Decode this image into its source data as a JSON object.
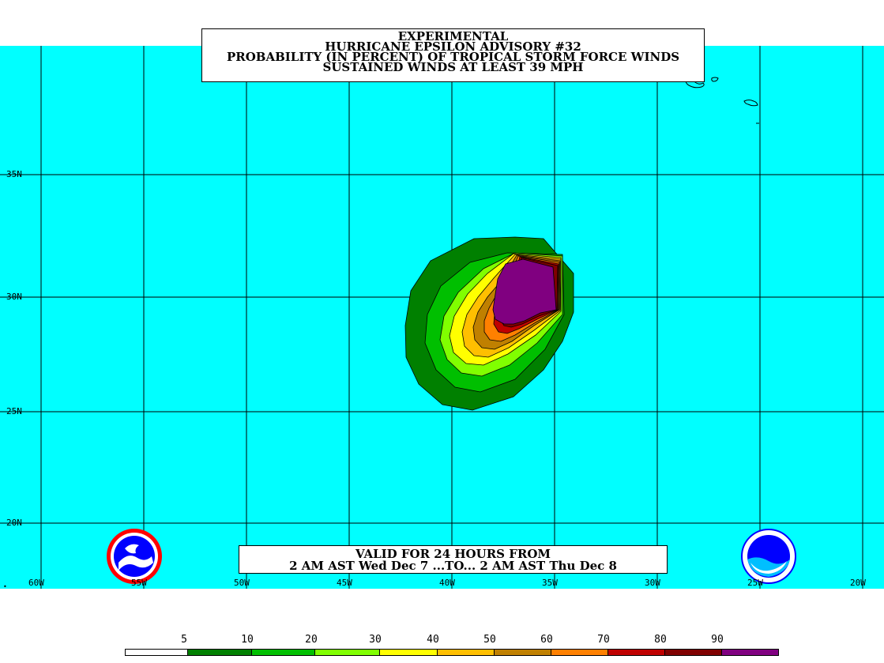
{
  "title": {
    "line1": "EXPERIMENTAL",
    "line2": "HURRICANE EPSILON ADVISORY #32",
    "line3": "PROBABILITY (IN PERCENT) OF TROPICAL STORM FORCE WINDS",
    "line4": "SUSTAINED WINDS AT LEAST 39 MPH"
  },
  "valid": {
    "line1": "VALID FOR 24 HOURS FROM",
    "line2": "2 AM AST Wed Dec 7 ...TO... 2 AM AST Thu Dec 8"
  },
  "lat_labels": [
    "35N",
    "30N",
    "25N",
    "20N"
  ],
  "lon_labels": [
    "60W",
    "55W",
    "50W",
    "45W",
    "40W",
    "35W",
    "30W",
    "25W",
    "20W"
  ],
  "legend": {
    "ticks": [
      "5",
      "10",
      "20",
      "30",
      "40",
      "50",
      "60",
      "70",
      "80",
      "90"
    ],
    "colors": [
      "#ffffff",
      "#008000",
      "#00bf00",
      "#80ff00",
      "#ffff00",
      "#ffbf00",
      "#c08000",
      "#ff8000",
      "#c00000",
      "#800000",
      "#800080"
    ]
  },
  "colors": {
    "ocean": "#00ffff",
    "grid": "#000000"
  },
  "logos": {
    "left": "nws-logo",
    "right": "noaa-logo"
  }
}
